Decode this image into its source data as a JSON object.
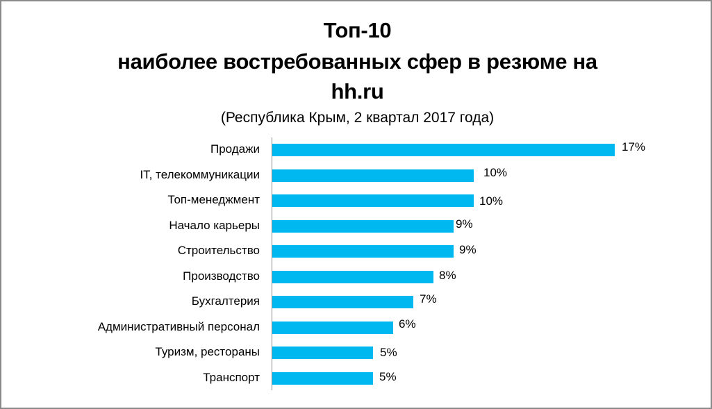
{
  "title": {
    "line1": "Топ-10",
    "line2": "наиболее востребованных сфер в резюме на",
    "line3": "hh.ru",
    "subtitle": "(Республика Крым, 2 квартал 2017 года)"
  },
  "colors": {
    "bar": "#00b8f0",
    "axis": "#888888",
    "border": "#8a8a8a"
  },
  "chart_data": {
    "type": "bar",
    "orientation": "horizontal",
    "title": "Топ-10 наиболее востребованных сфер в резюме на hh.ru",
    "subtitle": "(Республика Крым, 2 квартал 2017 года)",
    "xlabel": "",
    "ylabel": "",
    "grid": false,
    "legend": null,
    "categories": [
      "Продажи",
      "IT, телекоммуникации",
      "Топ-менеджмент",
      "Начало карьеры",
      "Строительство",
      "Производство",
      "Бухгалтерия",
      "Административный персонал",
      "Туризм, рестораны",
      "Транспорт"
    ],
    "values": [
      17,
      10,
      10,
      9,
      9,
      8,
      7,
      6,
      5,
      5
    ],
    "value_labels": [
      "17%",
      "10%",
      "10%",
      "9%",
      "9%",
      "8%",
      "7%",
      "6%",
      "5%",
      "5%"
    ],
    "unit": "%"
  }
}
